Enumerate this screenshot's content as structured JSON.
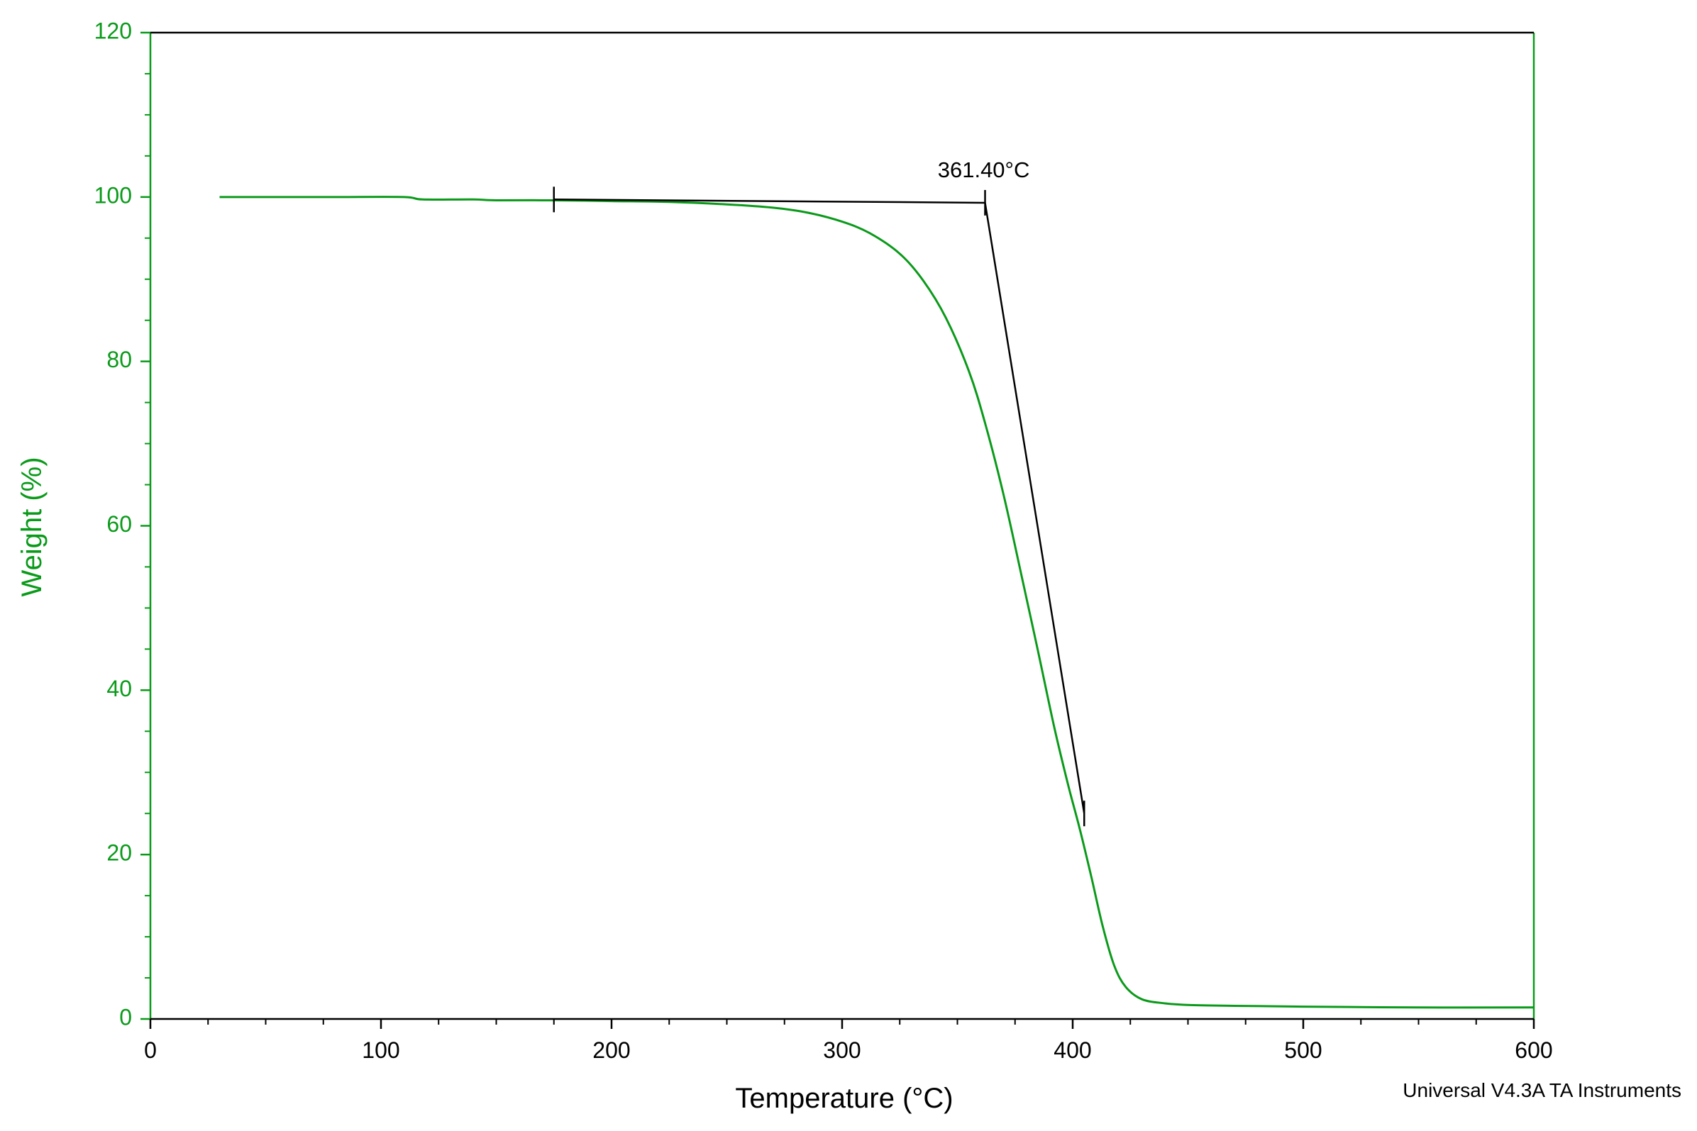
{
  "chart_data": {
    "type": "line",
    "xlabel": "Temperature (°C)",
    "ylabel": "Weight (%)",
    "xlim": [
      0,
      600
    ],
    "ylim": [
      0,
      120
    ],
    "x_ticks": [
      0,
      100,
      200,
      300,
      400,
      500,
      600
    ],
    "y_ticks": [
      0,
      20,
      40,
      60,
      80,
      100,
      120
    ],
    "grid": false,
    "colors": {
      "series": "#0a9a1a",
      "axis_y": "#0a9a1a",
      "axis_x": "#000000",
      "annotation": "#000000"
    },
    "series": [
      {
        "x": [
          30,
          50,
          80,
          110,
          118,
          140,
          150,
          175,
          200,
          225,
          250,
          270,
          285,
          300,
          312,
          325,
          335,
          345,
          355,
          362,
          370,
          378,
          385,
          392,
          398,
          403,
          408,
          413,
          418,
          423,
          430,
          440,
          450,
          470,
          500,
          550,
          600
        ],
        "y": [
          100,
          100,
          100,
          100,
          99.7,
          99.7,
          99.6,
          99.6,
          99.5,
          99.4,
          99.1,
          98.7,
          98.1,
          97.0,
          95.6,
          93.1,
          89.9,
          85.3,
          78.8,
          72.5,
          63.8,
          53.7,
          44.7,
          35.5,
          28.5,
          23.2,
          17.4,
          11.3,
          6.5,
          3.9,
          2.4,
          1.9,
          1.7,
          1.6,
          1.5,
          1.4,
          1.4
        ]
      }
    ],
    "annotations": [
      {
        "label": "361.40°C",
        "onset_x": 361.4,
        "baseline": {
          "x1": 175,
          "y1": 99.7,
          "x2": 362,
          "y2": 99.3
        },
        "tangent": {
          "x1": 362,
          "y1": 99.3,
          "x2": 405,
          "y2": 25
        },
        "markers": [
          {
            "x": 175,
            "y": 99.7
          },
          {
            "x": 362,
            "y": 99.3
          },
          {
            "x": 405,
            "y": 25
          }
        ]
      }
    ]
  },
  "footer": "Universal V4.3A TA Instruments"
}
